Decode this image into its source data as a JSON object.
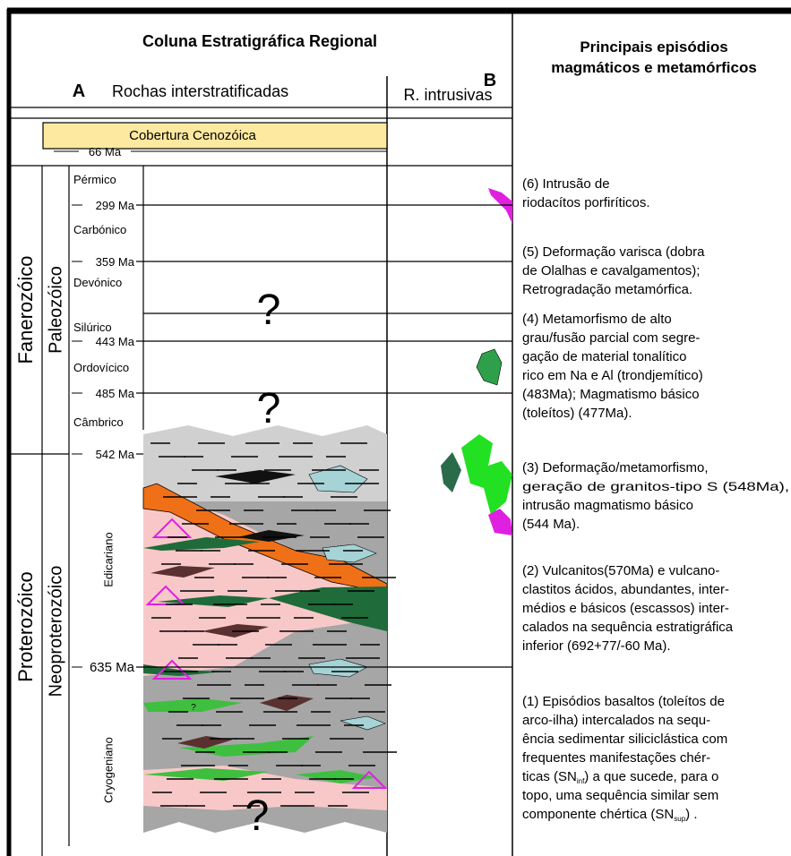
{
  "column_a": {
    "title": "Coluna Estratigráfica Regional",
    "label": "A",
    "subtitle": "Rochas interstratificadas"
  },
  "column_b": {
    "label": "B",
    "subtitle": "R. intrusivas"
  },
  "column_c": {
    "title_lines": [
      "Principais episódios",
      "magmáticos e metamórficos"
    ]
  },
  "cenozoic": {
    "label": "Cobertura Cenozóica",
    "age": "66 Ma"
  },
  "eons": [
    "Fanerozóico",
    "Proterozóico"
  ],
  "eras": [
    "Paleozóico",
    "Neoproterozóico"
  ],
  "periods": [
    "Pérmico",
    "Carbónico",
    "Devónico",
    "Silúrico",
    "Ordovícico",
    "Câmbrico",
    "Edicariano",
    "Cryogeniano"
  ],
  "ages": [
    "299 Ma",
    "359 Ma",
    "443 Ma",
    "485 Ma",
    "542 Ma",
    "635 Ma"
  ],
  "question_marks": [
    "?",
    "?",
    "?",
    "?"
  ],
  "episodes": [
    {
      "lines": [
        "(6) Intrusão de",
        "riodacítos porfiríticos."
      ]
    },
    {
      "lines": [
        "(5) Deformação varisca (dobra",
        "de Olalhas e cavalgamentos);",
        "Retrogradação metamórfica."
      ]
    },
    {
      "lines": [
        "(4) Metamorfismo de alto",
        " grau/fusão parcial com segre-",
        "gação de material tonalítico",
        "rico em Na e Al (trondjemítico)",
        "(483Ma); Magmatismo básico",
        "(toleítos) (477Ma)."
      ]
    },
    {
      "lines": [
        "(3) Deformação/metamorfismo,",
        "geração de granitos-tipo S (548Ma),",
        "intrusão magmatismo básico",
        "(544 Ma)."
      ]
    },
    {
      "lines": [
        "(2) Vulcanitos(570Ma) e vulcano-",
        "clastitos ácidos, abundantes, inter-",
        "médios e básicos (escassos) inter-",
        "calados na sequência estratigráfica",
        "inferior (692+77/-60 Ma)."
      ]
    },
    {
      "lines": [
        "(1) Episódios basaltos (toleítos de",
        " arco-ilha) intercalados na sequ-",
        "ência sedimentar siliciclástica com",
        "frequentes manifestações chér-",
        [
          "ticas (SN",
          "inf",
          ") a que sucede, para o"
        ],
        "topo, uma sequência similar sem",
        [
          "componente chértica (SN",
          "sup",
          ") ."
        ]
      ]
    }
  ]
}
